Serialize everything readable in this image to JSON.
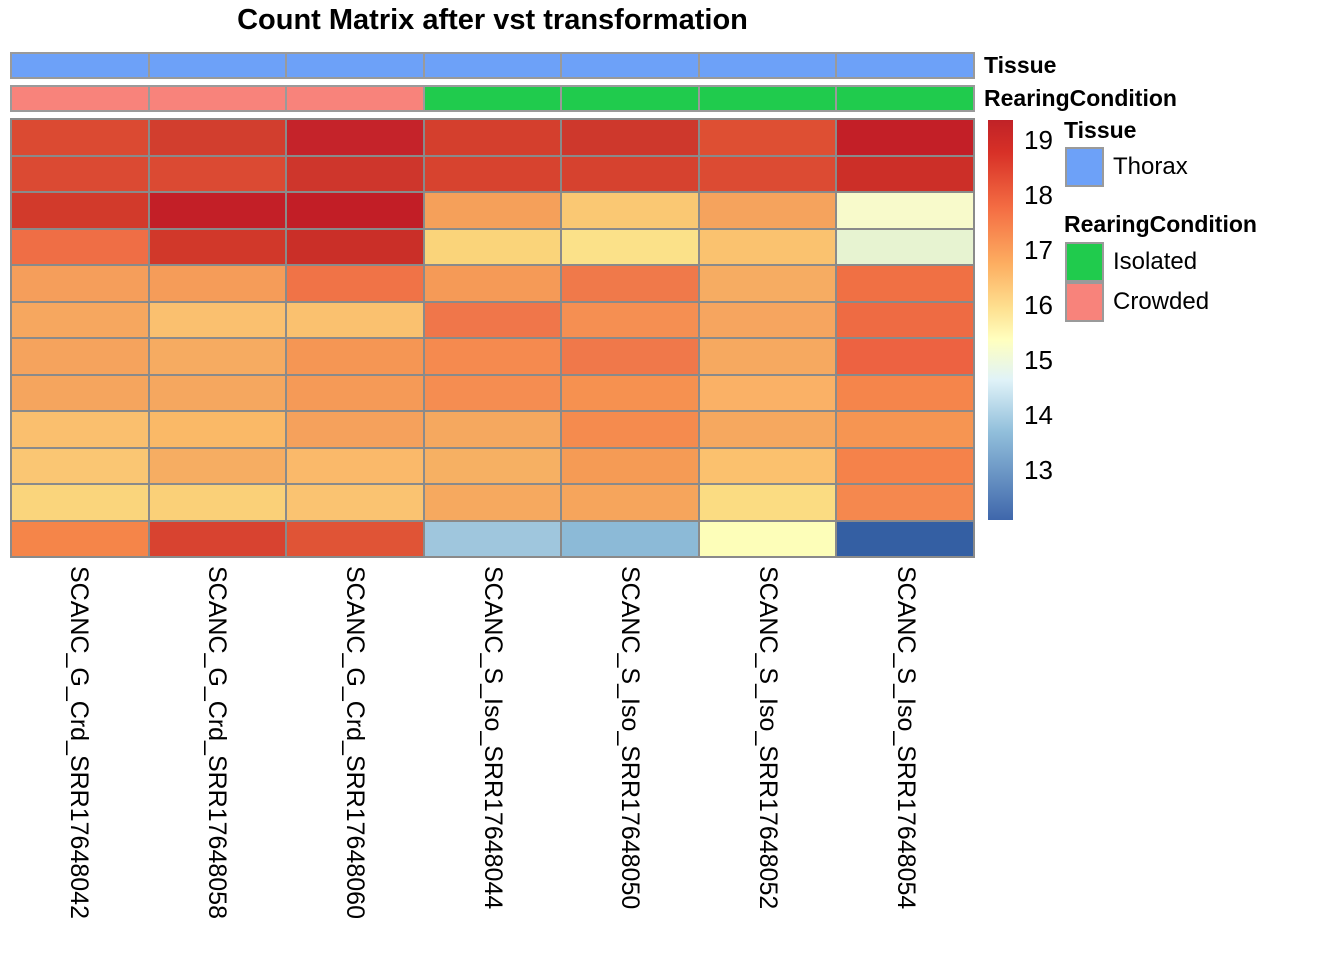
{
  "title": "Count Matrix after vst transformation",
  "annotations": {
    "tissue": {
      "label": "Tissue",
      "values": [
        "Thorax",
        "Thorax",
        "Thorax",
        "Thorax",
        "Thorax",
        "Thorax",
        "Thorax"
      ],
      "colors": {
        "Thorax": "#6DA1F8"
      }
    },
    "rearing": {
      "label": "RearingCondition",
      "values": [
        "Crowded",
        "Crowded",
        "Crowded",
        "Isolated",
        "Isolated",
        "Isolated",
        "Isolated"
      ],
      "colors": {
        "Isolated": "#20CB4D",
        "Crowded": "#F8837B"
      }
    }
  },
  "legend": {
    "tissue_header": "Tissue",
    "tissue_items": [
      {
        "label": "Thorax",
        "color": "#6DA1F8"
      }
    ],
    "rearing_header": "RearingCondition",
    "rearing_items": [
      {
        "label": "Isolated",
        "color": "#20CB4D"
      },
      {
        "label": "Crowded",
        "color": "#F8837B"
      }
    ]
  },
  "chart_data": {
    "type": "heatmap",
    "title": "Count Matrix after vst transformation",
    "columns": [
      "SCANC_G_Crd_SRR17648042",
      "SCANC_G_Crd_SRR17648058",
      "SCANC_G_Crd_SRR17648060",
      "SCANC_S_Iso_SRR17648044",
      "SCANC_S_Iso_SRR17648050",
      "SCANC_S_Iso_SRR17648052",
      "SCANC_S_Iso_SRR17648054"
    ],
    "n_rows": 12,
    "n_cols": 7,
    "column_annotation_tissue": [
      "Thorax",
      "Thorax",
      "Thorax",
      "Thorax",
      "Thorax",
      "Thorax",
      "Thorax"
    ],
    "column_annotation_rearing": [
      "Crowded",
      "Crowded",
      "Crowded",
      "Isolated",
      "Isolated",
      "Isolated",
      "Isolated"
    ],
    "values_estimated": [
      [
        18.7,
        18.9,
        19.2,
        18.9,
        19.0,
        18.6,
        19.3
      ],
      [
        18.7,
        18.7,
        19.0,
        18.8,
        18.8,
        18.7,
        19.0
      ],
      [
        18.9,
        19.3,
        19.3,
        17.6,
        16.9,
        17.5,
        15.4
      ],
      [
        18.2,
        18.9,
        19.1,
        16.6,
        16.3,
        17.0,
        15.1
      ],
      [
        17.6,
        17.6,
        18.2,
        17.7,
        18.1,
        17.3,
        18.3
      ],
      [
        17.4,
        17.0,
        17.0,
        18.1,
        17.8,
        17.5,
        18.3
      ],
      [
        17.5,
        17.3,
        17.7,
        17.9,
        18.1,
        17.4,
        18.4
      ],
      [
        17.5,
        17.4,
        17.7,
        17.8,
        17.8,
        17.1,
        17.9
      ],
      [
        17.0,
        17.1,
        17.6,
        17.4,
        17.9,
        17.4,
        17.7
      ],
      [
        16.9,
        17.3,
        17.1,
        17.2,
        17.6,
        17.0,
        17.9
      ],
      [
        16.6,
        16.7,
        16.9,
        17.4,
        17.5,
        16.4,
        17.8
      ],
      [
        17.9,
        18.8,
        18.5,
        14.2,
        13.9,
        15.7,
        12.4
      ]
    ],
    "cell_colors": [
      [
        "#DB4A32",
        "#D23E2E",
        "#C5232A",
        "#D43F2D",
        "#CE382C",
        "#DE4F33",
        "#C31F27"
      ],
      [
        "#DB4A33",
        "#DB4A33",
        "#CE362C",
        "#D7432F",
        "#D6422F",
        "#DC4B33",
        "#CC2F28"
      ],
      [
        "#D23A2B",
        "#C31F27",
        "#C21E26",
        "#F5A05A",
        "#FAC873",
        "#F5A35D",
        "#F8FACB"
      ],
      [
        "#EF6E45",
        "#D1382A",
        "#CA2F28",
        "#FAD47A",
        "#FBE189",
        "#FAC26F",
        "#E7F3D1"
      ],
      [
        "#F59E5B",
        "#F59C59",
        "#F07347",
        "#F59A57",
        "#F0794A",
        "#F6AC62",
        "#F07044"
      ],
      [
        "#F6A75F",
        "#FAC06F",
        "#FAC16F",
        "#F0764A",
        "#F58F52",
        "#F6A55F",
        "#EE6B43"
      ],
      [
        "#F5A35D",
        "#F6AB61",
        "#F59654",
        "#F58A4F",
        "#F0784A",
        "#F6A960",
        "#ED6241"
      ],
      [
        "#F5A55E",
        "#F5A75F",
        "#F59A57",
        "#F58D51",
        "#F69150",
        "#FAB166",
        "#F5854B"
      ],
      [
        "#FABF6E",
        "#FAB967",
        "#F5A15C",
        "#F5A85F",
        "#F58B4E",
        "#F6A85F",
        "#F69552"
      ],
      [
        "#FAC673",
        "#F6AD62",
        "#FAB96A",
        "#F6B063",
        "#F59B55",
        "#FBC16E",
        "#F5824A"
      ],
      [
        "#FAD57C",
        "#FAD078",
        "#FAC371",
        "#F6A95F",
        "#F6A55C",
        "#FBDC82",
        "#F5884E"
      ],
      [
        "#F58549",
        "#D84330",
        "#E05436",
        "#9FC6DD",
        "#8CBAD7",
        "#FDFEB9",
        "#345FA3"
      ]
    ],
    "colorbar": {
      "ticks": [
        "19",
        "18",
        "17",
        "16",
        "15",
        "14",
        "13"
      ],
      "range_approx": [
        12.1,
        19.4
      ],
      "gradient_top_to_bottom": [
        "#C02227 0%",
        "#D73027 8%",
        "#F46D43 22%",
        "#FDAE61 36%",
        "#FEE090 47%",
        "#FFFFBF 55%",
        "#E0F3F8 65%",
        "#91BFDB 78%",
        "#3F67AB 100%"
      ],
      "legend_position": "right"
    },
    "grid_color": "#8A8A8A"
  }
}
